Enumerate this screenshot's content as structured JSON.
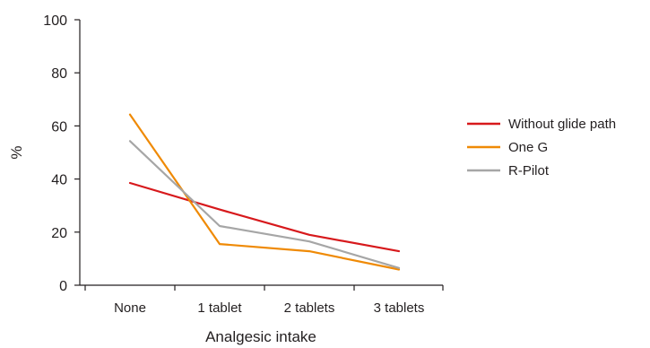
{
  "chart_data": {
    "type": "line",
    "categories": [
      "None",
      "1 tablet",
      "2 tablets",
      "3 tablets"
    ],
    "series": [
      {
        "name": "Without glide path",
        "color": "#d7191c",
        "values": [
          38.5,
          28.5,
          19,
          12.8
        ]
      },
      {
        "name": "One G",
        "color": "#ef8a06",
        "values": [
          64.3,
          15.5,
          12.8,
          5.9
        ]
      },
      {
        "name": "R-Pilot",
        "color": "#a6a6a6",
        "values": [
          54.3,
          22.3,
          16.5,
          6.5
        ]
      }
    ],
    "title": "",
    "xlabel": "Analgesic intake",
    "ylabel": "%",
    "ylim": [
      0,
      100
    ],
    "yticks": [
      0,
      20,
      40,
      60,
      80,
      100
    ],
    "grid": false,
    "legend_position": "right"
  }
}
